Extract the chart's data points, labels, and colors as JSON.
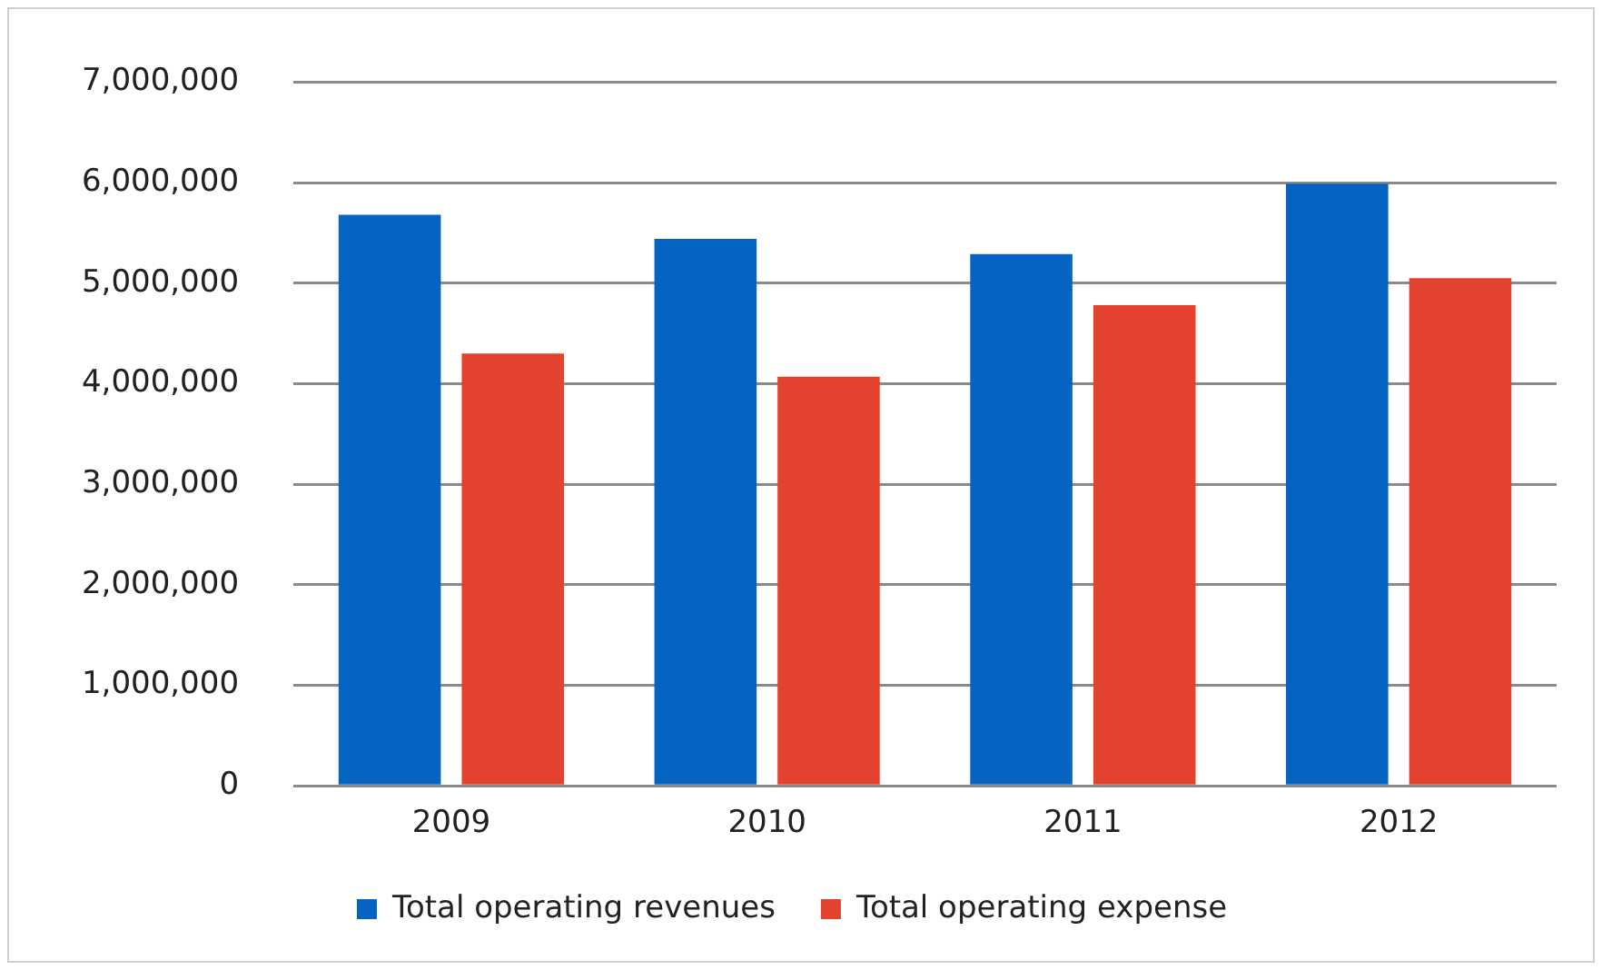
{
  "chart_data": {
    "type": "bar",
    "categories": [
      "2009",
      "2010",
      "2011",
      "2012"
    ],
    "series": [
      {
        "name": "Total operating revenues",
        "color": "#0563c1",
        "values": [
          5680000,
          5440000,
          5290000,
          5990000
        ]
      },
      {
        "name": "Total operating expense",
        "color": "#e3422f",
        "values": [
          4300000,
          4070000,
          4780000,
          5050000
        ]
      }
    ],
    "ylim": [
      0,
      7000000
    ],
    "yticks": [
      {
        "value": 0,
        "label": "0"
      },
      {
        "value": 1000000,
        "label": "1,000,000"
      },
      {
        "value": 2000000,
        "label": "2,000,000"
      },
      {
        "value": 3000000,
        "label": "3,000,000"
      },
      {
        "value": 4000000,
        "label": "4,000,000"
      },
      {
        "value": 5000000,
        "label": "5,000,000"
      },
      {
        "value": 6000000,
        "label": "6,000,000"
      },
      {
        "value": 7000000,
        "label": "7,000,000"
      }
    ],
    "grid": "y",
    "legend": "bottom"
  }
}
